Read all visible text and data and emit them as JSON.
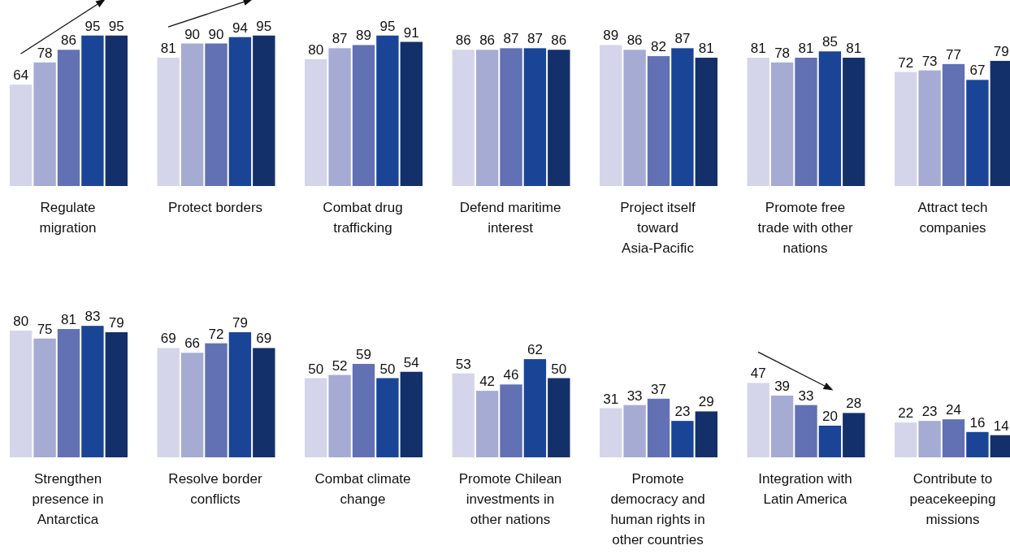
{
  "chart_data": [
    {
      "type": "bar",
      "xlabel": "Regulate migration",
      "categories": [
        null,
        null,
        null,
        null,
        null
      ],
      "values": [
        64,
        78,
        86,
        95,
        95
      ],
      "colors": [
        "#d4d5ea",
        "#a6abd4",
        "#6271b3",
        "#1a4597",
        "#14306b"
      ],
      "data_labels": true
    },
    {
      "type": "bar",
      "xlabel": "Protect borders",
      "categories": [
        null,
        null,
        null,
        null,
        null
      ],
      "values": [
        81,
        90,
        90,
        94,
        95
      ],
      "colors": [
        "#d4d5ea",
        "#a6abd4",
        "#6271b3",
        "#1a4597",
        "#14306b"
      ],
      "data_labels": true
    },
    {
      "type": "bar",
      "xlabel": "Combat drug trafficking",
      "categories": [
        null,
        null,
        null,
        null,
        null
      ],
      "values": [
        80,
        87,
        89,
        95,
        91
      ],
      "colors": [
        "#d4d5ea",
        "#a6abd4",
        "#6271b3",
        "#1a4597",
        "#14306b"
      ],
      "data_labels": true
    },
    {
      "type": "bar",
      "xlabel": "Defend maritime interest",
      "categories": [
        null,
        null,
        null,
        null,
        null
      ],
      "values": [
        86,
        86,
        87,
        87,
        86
      ],
      "colors": [
        "#d4d5ea",
        "#a6abd4",
        "#6271b3",
        "#1a4597",
        "#14306b"
      ],
      "data_labels": true
    },
    {
      "type": "bar",
      "xlabel": "Project itself toward Asia-Pacific",
      "categories": [
        null,
        null,
        null,
        null,
        null
      ],
      "values": [
        89,
        86,
        82,
        87,
        81
      ],
      "colors": [
        "#d4d5ea",
        "#a6abd4",
        "#6271b3",
        "#1a4597",
        "#14306b"
      ],
      "data_labels": true
    },
    {
      "type": "bar",
      "xlabel": "Promote free trade with other nations",
      "categories": [
        null,
        null,
        null,
        null,
        null
      ],
      "values": [
        81,
        78,
        81,
        85,
        81
      ],
      "colors": [
        "#d4d5ea",
        "#a6abd4",
        "#6271b3",
        "#1a4597",
        "#14306b"
      ],
      "data_labels": true
    },
    {
      "type": "bar",
      "xlabel": "Attract tech companies",
      "categories": [
        null,
        null,
        null,
        null,
        null
      ],
      "values": [
        72,
        73,
        77,
        67,
        79
      ],
      "colors": [
        "#d4d5ea",
        "#a6abd4",
        "#6271b3",
        "#1a4597",
        "#14306b"
      ],
      "data_labels": true
    },
    {
      "type": "bar",
      "xlabel": "Strengthen presence in Antarctica",
      "categories": [
        null,
        null,
        null,
        null,
        null
      ],
      "values": [
        80,
        75,
        81,
        83,
        79
      ],
      "colors": [
        "#d4d5ea",
        "#a6abd4",
        "#6271b3",
        "#1a4597",
        "#14306b"
      ],
      "data_labels": true
    },
    {
      "type": "bar",
      "xlabel": "Resolve border conflicts",
      "categories": [
        null,
        null,
        null,
        null,
        null
      ],
      "values": [
        69,
        66,
        72,
        79,
        69
      ],
      "colors": [
        "#d4d5ea",
        "#a6abd4",
        "#6271b3",
        "#1a4597",
        "#14306b"
      ],
      "data_labels": true
    },
    {
      "type": "bar",
      "xlabel": "Combat climate change",
      "categories": [
        null,
        null,
        null,
        null,
        null
      ],
      "values": [
        50,
        52,
        59,
        50,
        54
      ],
      "colors": [
        "#d4d5ea",
        "#a6abd4",
        "#6271b3",
        "#1a4597",
        "#14306b"
      ],
      "data_labels": true
    },
    {
      "type": "bar",
      "xlabel": "Promote Chilean investments in other nations",
      "categories": [
        null,
        null,
        null,
        null,
        null
      ],
      "values": [
        53,
        42,
        46,
        62,
        50
      ],
      "colors": [
        "#d4d5ea",
        "#a6abd4",
        "#6271b3",
        "#1a4597",
        "#14306b"
      ],
      "data_labels": true
    },
    {
      "type": "bar",
      "xlabel": "Promote democracy and human rights in other countries",
      "categories": [
        null,
        null,
        null,
        null,
        null
      ],
      "values": [
        31,
        33,
        37,
        23,
        29
      ],
      "colors": [
        "#d4d5ea",
        "#a6abd4",
        "#6271b3",
        "#1a4597",
        "#14306b"
      ],
      "data_labels": true
    },
    {
      "type": "bar",
      "xlabel": "Integration with Latin America",
      "categories": [
        null,
        null,
        null,
        null,
        null
      ],
      "values": [
        47,
        39,
        33,
        20,
        28
      ],
      "colors": [
        "#d4d5ea",
        "#a6abd4",
        "#6271b3",
        "#1a4597",
        "#14306b"
      ],
      "data_labels": true
    },
    {
      "type": "bar",
      "xlabel": "Contribute to peacekeeping missions",
      "categories": [
        null,
        null,
        null,
        null,
        null
      ],
      "values": [
        22,
        23,
        24,
        16,
        14
      ],
      "colors": [
        "#d4d5ea",
        "#a6abd4",
        "#6271b3",
        "#1a4597",
        "#14306b"
      ],
      "data_labels": true
    }
  ]
}
